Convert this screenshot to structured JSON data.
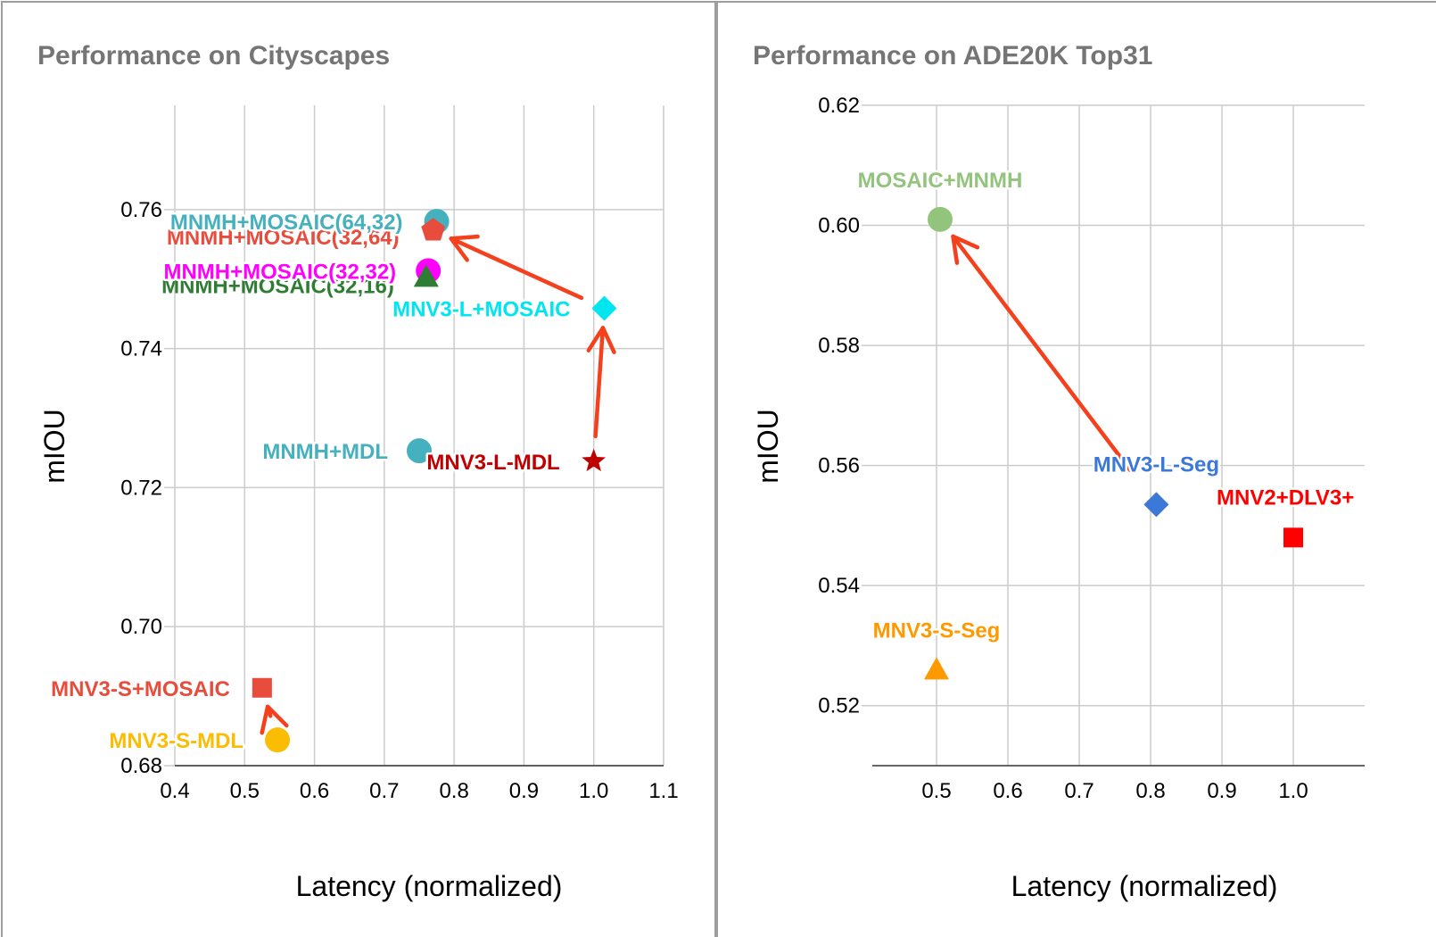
{
  "chart_data": [
    {
      "type": "scatter",
      "title": "Performance on Cityscapes",
      "xlabel": "Latency (normalized)",
      "ylabel": "mIOU",
      "xlim": [
        0.4,
        1.1
      ],
      "ylim": [
        0.68,
        0.775
      ],
      "x_ticks": [
        "0.4",
        "0.5",
        "0.6",
        "0.7",
        "0.8",
        "0.9",
        "1.0",
        "1.1"
      ],
      "y_ticks": [
        "0.68",
        "0.70",
        "0.72",
        "0.74",
        "0.76"
      ],
      "grid": true,
      "points": [
        {
          "label": "MNMH+MOSAIC(64,32)",
          "x": 0.775,
          "y": 0.7583,
          "marker": "circle",
          "color": "#45b1bf"
        },
        {
          "label": "MNMH+MOSAIC(32,64)",
          "x": 0.77,
          "y": 0.757,
          "marker": "pentagon",
          "color": "#e74c3c"
        },
        {
          "label": "MNMH+MOSAIC(32,32)",
          "x": 0.763,
          "y": 0.7512,
          "marker": "circle",
          "color": "#ff00ff"
        },
        {
          "label": "MNMH+MOSAIC(32,16)",
          "x": 0.76,
          "y": 0.7503,
          "marker": "triangle",
          "color": "#2e7d32"
        },
        {
          "label": "MNV3-L+MOSAIC",
          "x": 1.015,
          "y": 0.7458,
          "marker": "diamond",
          "color": "#00e5ee"
        },
        {
          "label": "MNMH+MDL",
          "x": 0.75,
          "y": 0.7253,
          "marker": "circle",
          "color": "#45b1bf"
        },
        {
          "label": "MNV3-L-MDL",
          "x": 1.0,
          "y": 0.7238,
          "marker": "star",
          "color": "#c00000"
        },
        {
          "label": "MNV3-S+MOSAIC",
          "x": 0.525,
          "y": 0.6912,
          "marker": "square",
          "color": "#e74c3c"
        },
        {
          "label": "MNV3-S-MDL",
          "x": 0.547,
          "y": 0.6837,
          "marker": "circle",
          "color": "#fbbc04"
        }
      ],
      "arrows": [
        {
          "from": "MNV3-L+MOSAIC",
          "to": "MNMH+MOSAIC(32,64)"
        },
        {
          "from": "MNV3-L-MDL",
          "to": "MNV3-L+MOSAIC"
        },
        {
          "from": "MNV3-S-MDL",
          "to": "MNV3-S+MOSAIC"
        }
      ]
    },
    {
      "type": "scatter",
      "title": "Performance on ADE20K Top31",
      "xlabel": "Latency (normalized)",
      "ylabel": "mIOU",
      "xlim": [
        0.41,
        1.1
      ],
      "ylim": [
        0.51,
        0.62
      ],
      "x_ticks": [
        "0.5",
        "0.6",
        "0.7",
        "0.8",
        "0.9",
        "1.0"
      ],
      "y_ticks": [
        "0.52",
        "0.54",
        "0.56",
        "0.58",
        "0.60",
        "0.62"
      ],
      "grid": true,
      "points": [
        {
          "label": "MOSAIC+MNMH",
          "x": 0.505,
          "y": 0.601,
          "marker": "circle",
          "color": "#93c47d"
        },
        {
          "label": "MNV3-L-Seg",
          "x": 0.808,
          "y": 0.5535,
          "marker": "diamond",
          "color": "#3c78d8"
        },
        {
          "label": "MNV2+DLV3+",
          "x": 1.0,
          "y": 0.548,
          "marker": "square",
          "color": "#ff0000"
        },
        {
          "label": "MNV3-S-Seg",
          "x": 0.5,
          "y": 0.526,
          "marker": "triangle",
          "color": "#ff9900"
        }
      ],
      "arrows": [
        {
          "from": "MNV3-L-Seg",
          "to": "MOSAIC+MNMH"
        }
      ]
    }
  ]
}
